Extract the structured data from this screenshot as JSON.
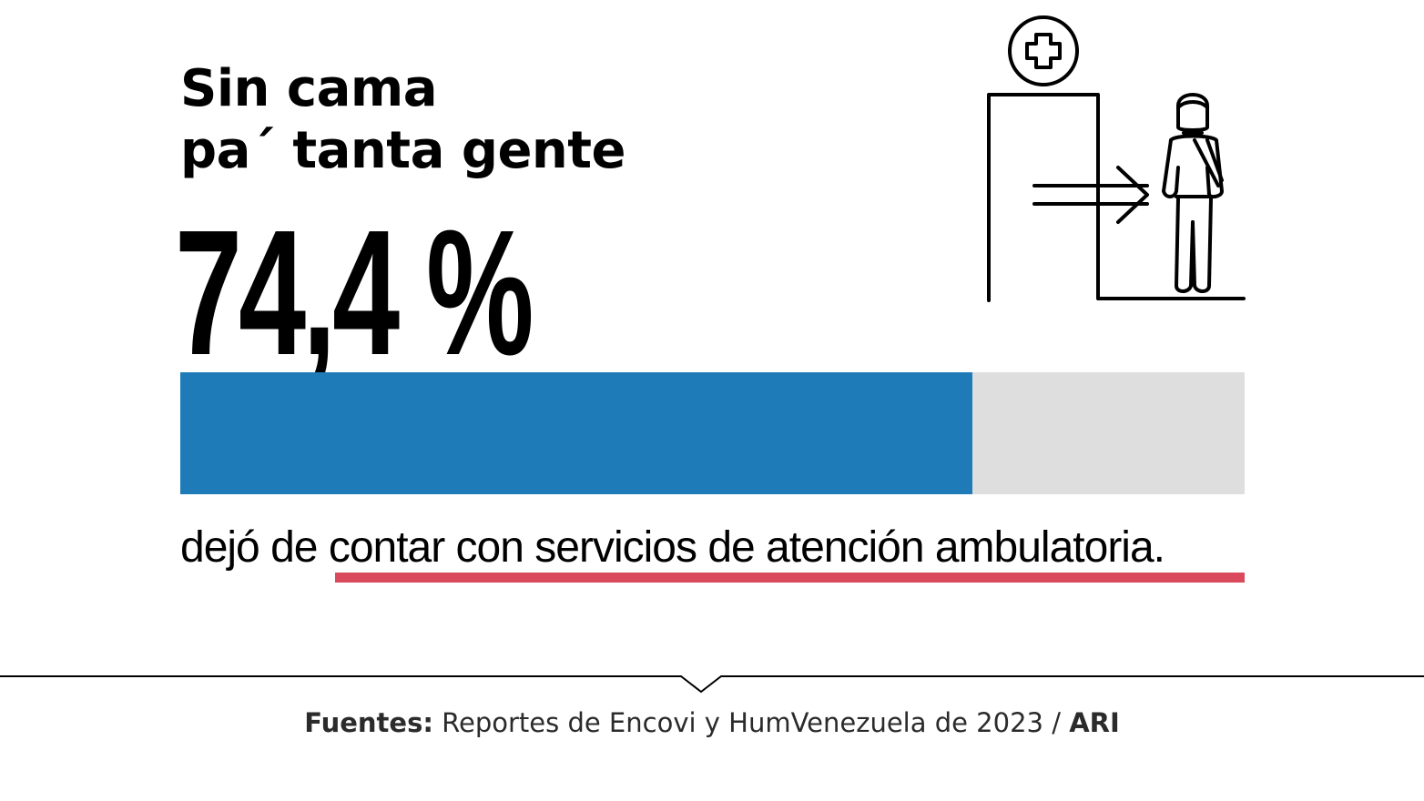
{
  "title": {
    "line1": "Sin cama",
    "line2": "pa´ tanta gente"
  },
  "stat": {
    "value_label": "74,4 %",
    "fraction": 0.744
  },
  "caption": {
    "lead": "dejó de ",
    "highlight": "contar con servicios de atención ambulatoria."
  },
  "source": {
    "label": "Fuentes:",
    "text": " Reportes de Encovi y HumVenezuela de 2023 / ",
    "org": "ARI"
  },
  "icons": {
    "illustration": "hospital-exit-patient-icon",
    "cross": "medical-cross-icon"
  },
  "colors": {
    "bar_fill": "#1f7bb8",
    "bar_track": "#dedede",
    "underline": "#d94a5c",
    "text": "#000000",
    "source_text": "#2b2b2b"
  }
}
